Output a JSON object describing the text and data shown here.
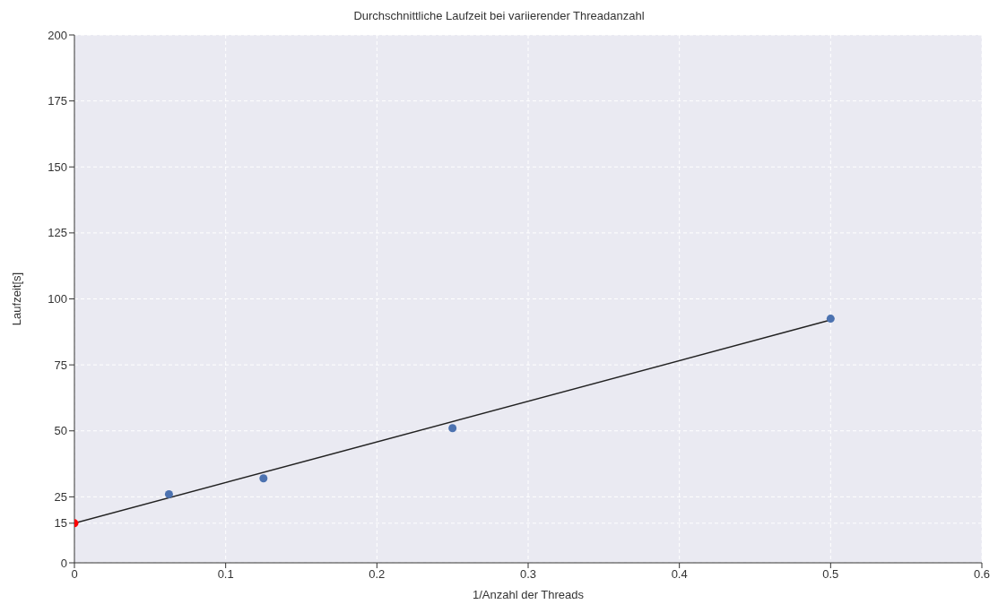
{
  "chart_data": {
    "type": "scatter",
    "title": "Durchschnittliche Laufzeit bei variierender Threadanzahl",
    "xlabel": "1/Anzahl der Threads",
    "ylabel": "Laufzeit[s]",
    "series": [
      {
        "color": "#4c72b0",
        "x": [
          0.0625,
          0.125,
          0.25,
          0.5
        ],
        "values": [
          26,
          32,
          51,
          92.5
        ]
      },
      {
        "type": "line",
        "marker": "none",
        "color": "#222222",
        "x": [
          0,
          0.5
        ],
        "values": [
          15,
          92
        ]
      },
      {
        "color": "#ff0000",
        "x": [
          0
        ],
        "values": [
          15
        ]
      }
    ],
    "xlim": [
      0,
      0.6
    ],
    "xticks": [
      0,
      0.1,
      0.2,
      0.3,
      0.4,
      0.5,
      0.6
    ],
    "ylim": [
      0,
      200
    ],
    "yticks": [
      0,
      15,
      25,
      50,
      75,
      100,
      125,
      150,
      175,
      200
    ],
    "grid": true,
    "marker": "circle"
  }
}
